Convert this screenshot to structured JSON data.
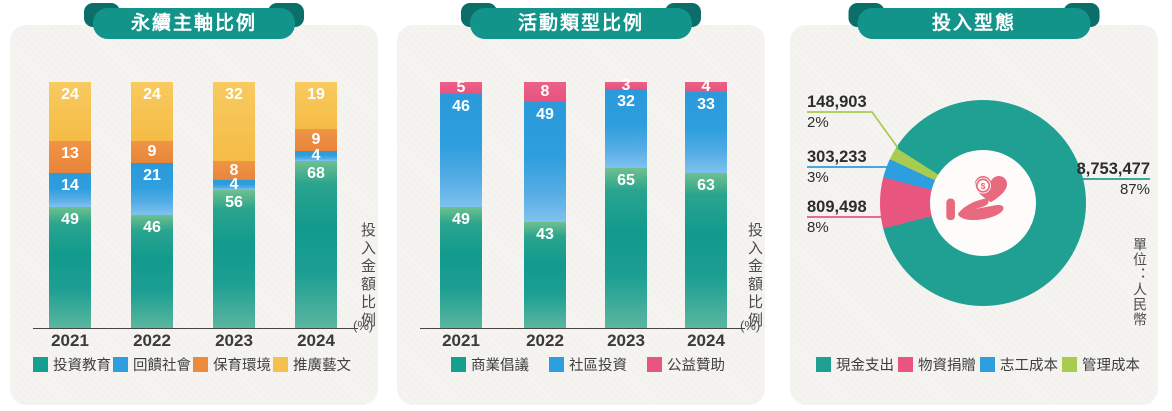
{
  "accent": {
    "ribbon_teal": "#12948b",
    "ribbon_fold": "#0b6e69",
    "card_bg": "#f5f4f1",
    "icon_pink": "#e9697f",
    "axis_color": "#454545"
  },
  "charts": [
    {
      "title": "永續主軸比例",
      "type": "bar",
      "stacked": true,
      "categories": [
        "2021",
        "2022",
        "2023",
        "2024"
      ],
      "series": [
        {
          "name": "投資教育",
          "color": "#149f90",
          "values": [
            49,
            46,
            56,
            68
          ]
        },
        {
          "name": "回饋社會",
          "color": "#2d9ede",
          "values": [
            14,
            21,
            4,
            4
          ]
        },
        {
          "name": "保育環境",
          "color": "#ec8b3c",
          "values": [
            13,
            9,
            8,
            9
          ]
        },
        {
          "name": "推廣藝文",
          "color": "#f6c04e",
          "values": [
            24,
            24,
            32,
            19
          ]
        }
      ],
      "ylabel": "投入金額比例",
      "ylabel_unit": "(%)",
      "ylim": [
        0,
        100
      ],
      "grid": false,
      "legend_position": "bottom"
    },
    {
      "title": "活動類型比例",
      "type": "bar",
      "stacked": true,
      "categories": [
        "2021",
        "2022",
        "2023",
        "2024"
      ],
      "series": [
        {
          "name": "商業倡議",
          "color": "#149f90",
          "values": [
            49,
            43,
            65,
            63
          ]
        },
        {
          "name": "社區投資",
          "color": "#2d9ede",
          "values": [
            46,
            49,
            32,
            33
          ]
        },
        {
          "name": "公益贊助",
          "color": "#e85680",
          "values": [
            5,
            8,
            3,
            4
          ]
        }
      ],
      "ylabel": "投入金額比例",
      "ylabel_unit": "(%)",
      "ylim": [
        0,
        100
      ],
      "grid": false,
      "legend_position": "bottom"
    },
    {
      "title": "投入型態",
      "type": "pie",
      "donut": true,
      "unit_note": "單位：人民幣",
      "center_icon": "hand-holding-heart-dollar-icon",
      "slices": [
        {
          "name": "現金支出",
          "color": "#1fa093",
          "value": 8753477,
          "value_label": "8,753,477",
          "pct": 87,
          "pct_label": "87%"
        },
        {
          "name": "物資捐贈",
          "color": "#e85680",
          "value": 809498,
          "value_label": "809,498",
          "pct": 8,
          "pct_label": "8%"
        },
        {
          "name": "志工成本",
          "color": "#2d9ede",
          "value": 303233,
          "value_label": "303,233",
          "pct": 3,
          "pct_label": "3%"
        },
        {
          "name": "管理成本",
          "color": "#a8cb52",
          "value": 148903,
          "value_label": "148,903",
          "pct": 2,
          "pct_label": "2%"
        }
      ],
      "legend_position": "bottom"
    }
  ]
}
